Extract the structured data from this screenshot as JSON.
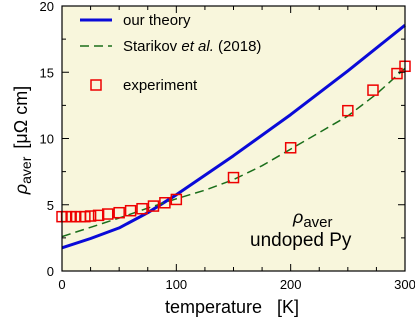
{
  "colors": {
    "background": "#f8f6dc",
    "theory": "#0a0ad8",
    "starikov": "#1a6e1a",
    "experiment": "#ee0000",
    "axis": "#000000"
  },
  "chart_data": {
    "type": "line",
    "xlabel": "temperature   [K]",
    "ylabel_symbol": "ρ",
    "ylabel_subscript": "aver",
    "ylabel_units": "[μΩ cm]",
    "xlim": [
      0,
      300
    ],
    "ylim": [
      0,
      20
    ],
    "xticks": [
      0,
      100,
      200,
      300
    ],
    "yticks": [
      0,
      5,
      10,
      15,
      20
    ],
    "xtick_labels": [
      "0",
      "100",
      "200",
      "300"
    ],
    "ytick_labels": [
      "0",
      "5",
      "10",
      "15",
      "20"
    ],
    "legend_position": "top-left",
    "annotation": {
      "symbol": "ρ",
      "subscript": "aver",
      "text": "undoped Py"
    },
    "series": [
      {
        "name": "our theory",
        "style": "solid",
        "x": [
          0,
          25,
          50,
          75,
          100,
          150,
          200,
          250,
          300
        ],
        "y": [
          1.75,
          2.45,
          3.25,
          4.4,
          5.75,
          8.7,
          11.8,
          15.1,
          18.55
        ]
      },
      {
        "name_prefix": "Starikov ",
        "name_italic": "et al.",
        "name_suffix": " (2018)",
        "style": "dashed",
        "x": [
          0,
          25,
          50,
          75,
          100,
          125,
          150,
          175,
          200,
          225,
          250,
          275,
          300
        ],
        "y": [
          2.6,
          3.3,
          4.0,
          4.75,
          5.45,
          6.1,
          6.9,
          7.95,
          9.2,
          10.45,
          11.7,
          13.35,
          15.3
        ]
      },
      {
        "name": "experiment",
        "style": "markers",
        "x": [
          0,
          4,
          8,
          12,
          16,
          20,
          25,
          32,
          40,
          50,
          60,
          70,
          80,
          90,
          100,
          150,
          200,
          250,
          272,
          293,
          300
        ],
        "y": [
          4.1,
          4.1,
          4.1,
          4.1,
          4.1,
          4.1,
          4.15,
          4.2,
          4.3,
          4.4,
          4.55,
          4.7,
          4.9,
          5.15,
          5.4,
          7.05,
          9.3,
          12.1,
          13.65,
          14.9,
          15.45
        ]
      }
    ]
  }
}
